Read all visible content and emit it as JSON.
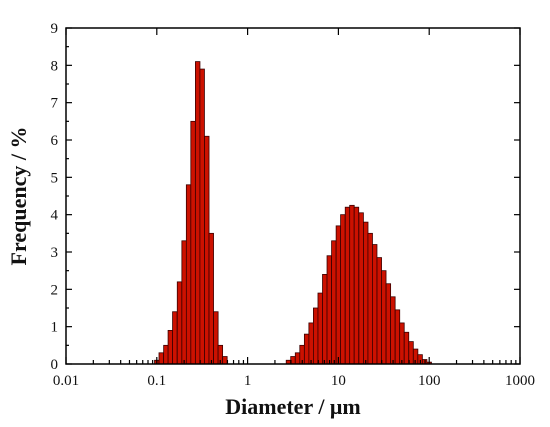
{
  "chart_data": {
    "type": "bar",
    "title": "",
    "xlabel": "Diameter / μm",
    "ylabel": "Frequency / %",
    "x_scale": "log",
    "xlim": [
      0.01,
      1000
    ],
    "ylim": [
      0,
      9
    ],
    "x_ticks": [
      0.01,
      0.1,
      1,
      10,
      100,
      1000
    ],
    "x_tick_labels": [
      "0.01",
      "0.1",
      "1",
      "10",
      "100",
      "1000"
    ],
    "y_ticks": [
      0,
      1,
      2,
      3,
      4,
      5,
      6,
      7,
      8,
      9
    ],
    "y_tick_labels": [
      "0",
      "1",
      "2",
      "3",
      "4",
      "5",
      "6",
      "7",
      "8",
      "9"
    ],
    "grid": false,
    "legend": "none",
    "bar_color": "#cc1100",
    "bar_edge_color": "#3a0000",
    "series": [
      {
        "x": [
          0.1,
          0.112,
          0.126,
          0.141,
          0.158,
          0.178,
          0.2,
          0.224,
          0.251,
          0.282,
          0.316,
          0.355,
          0.398,
          0.447,
          0.501,
          0.562,
          2.82,
          3.16,
          3.55,
          3.98,
          4.47,
          5.01,
          5.62,
          6.31,
          7.08,
          7.94,
          8.91,
          10.0,
          11.2,
          12.6,
          14.1,
          15.8,
          17.8,
          20.0,
          22.4,
          25.1,
          28.2,
          31.6,
          35.5,
          39.8,
          44.7,
          50.1,
          56.2,
          63.1,
          70.8,
          79.4,
          89.1,
          100.0
        ],
        "values": [
          0.1,
          0.3,
          0.5,
          0.9,
          1.4,
          2.2,
          3.3,
          4.8,
          6.5,
          8.1,
          7.9,
          6.1,
          3.5,
          1.4,
          0.5,
          0.2,
          0.1,
          0.2,
          0.3,
          0.5,
          0.8,
          1.1,
          1.5,
          1.9,
          2.4,
          2.9,
          3.3,
          3.7,
          4.0,
          4.2,
          4.25,
          4.2,
          4.05,
          3.8,
          3.5,
          3.2,
          2.85,
          2.5,
          2.15,
          1.8,
          1.45,
          1.1,
          0.85,
          0.6,
          0.4,
          0.25,
          0.12,
          0.05
        ]
      }
    ]
  }
}
